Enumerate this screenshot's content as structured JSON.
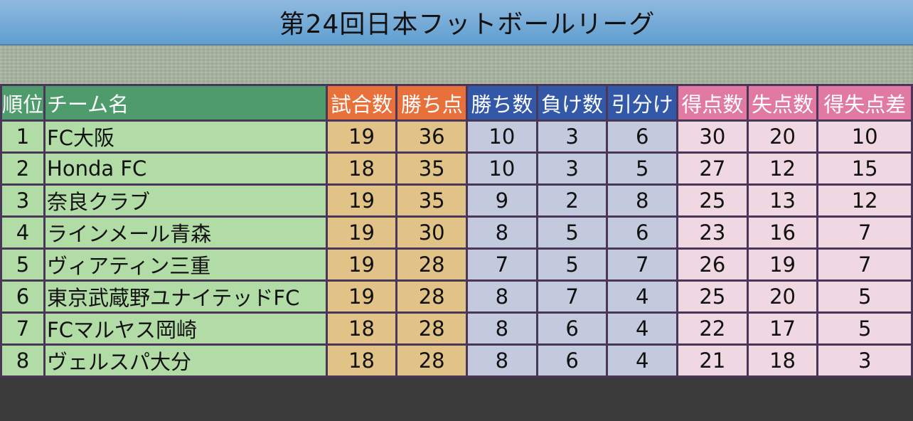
{
  "title": "第24回日本フットボールリーグ",
  "headers": {
    "rank": "順位",
    "team": "チーム名",
    "played": "試合数",
    "points": "勝ち点",
    "wins": "勝ち数",
    "losses": "負け数",
    "draws": "引分け",
    "goals_for": "得点数",
    "goals_against": "失点数",
    "goal_diff": "得失点差"
  },
  "rows": [
    {
      "rank": "1",
      "team": "FC大阪",
      "played": "19",
      "points": "36",
      "wins": "10",
      "losses": "3",
      "draws": "6",
      "goals_for": "30",
      "goals_against": "20",
      "goal_diff": "10"
    },
    {
      "rank": "2",
      "team": "Honda FC",
      "played": "18",
      "points": "35",
      "wins": "10",
      "losses": "3",
      "draws": "5",
      "goals_for": "27",
      "goals_against": "12",
      "goal_diff": "15"
    },
    {
      "rank": "3",
      "team": "奈良クラブ",
      "played": "19",
      "points": "35",
      "wins": "9",
      "losses": "2",
      "draws": "8",
      "goals_for": "25",
      "goals_against": "13",
      "goal_diff": "12"
    },
    {
      "rank": "4",
      "team": "ラインメール青森",
      "played": "19",
      "points": "30",
      "wins": "8",
      "losses": "5",
      "draws": "6",
      "goals_for": "23",
      "goals_against": "16",
      "goal_diff": "7"
    },
    {
      "rank": "5",
      "team": "ヴィアティン三重",
      "played": "19",
      "points": "28",
      "wins": "7",
      "losses": "5",
      "draws": "7",
      "goals_for": "26",
      "goals_against": "19",
      "goal_diff": "7"
    },
    {
      "rank": "6",
      "team": "東京武蔵野ユナイテッドFC",
      "played": "19",
      "points": "28",
      "wins": "8",
      "losses": "7",
      "draws": "4",
      "goals_for": "25",
      "goals_against": "20",
      "goal_diff": "5"
    },
    {
      "rank": "7",
      "team": "FCマルヤス岡崎",
      "played": "18",
      "points": "28",
      "wins": "8",
      "losses": "6",
      "draws": "4",
      "goals_for": "22",
      "goals_against": "17",
      "goal_diff": "5"
    },
    {
      "rank": "8",
      "team": "ヴェルスパ大分",
      "played": "18",
      "points": "28",
      "wins": "8",
      "losses": "6",
      "draws": "4",
      "goals_for": "21",
      "goals_against": "18",
      "goal_diff": "3"
    }
  ],
  "colors": {
    "header_green": "#4e9c6c",
    "header_orange": "#e8703a",
    "header_blue": "#3358a8",
    "header_pink": "#e07aa2",
    "cell_green": "#b2dca5",
    "cell_tan": "#e2c387",
    "cell_lavender": "#c4cade",
    "cell_pink": "#f0d8e2",
    "border": "#4a3658"
  }
}
